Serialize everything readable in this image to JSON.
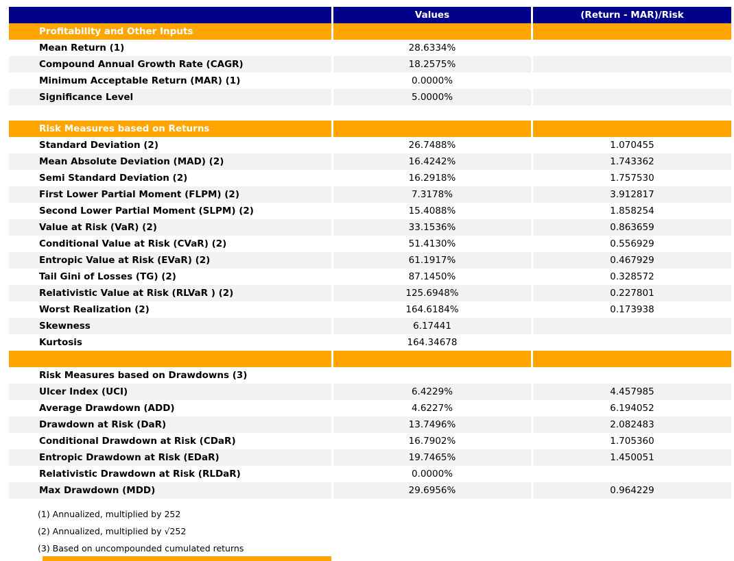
{
  "colors": {
    "header_navy": "#00008B",
    "section_orange": "#FFA500",
    "stripe_gray": "#F2F2F2"
  },
  "report": {
    "header": {
      "label_col": "",
      "values_col": "Values",
      "risk_col": "(Return - MAR)/Risk"
    },
    "sections": [
      {
        "title": "Profitability and Other Inputs",
        "gap_before": false,
        "rows": [
          {
            "label": "Mean Return (1)",
            "value": "28.6334%",
            "risk": ""
          },
          {
            "label": "Compound Annual Growth Rate (CAGR)",
            "value": "18.2575%",
            "risk": ""
          },
          {
            "label": "Minimum Acceptable Return (MAR) (1)",
            "value": "0.0000%",
            "risk": ""
          },
          {
            "label": "Significance Level",
            "value": "5.0000%",
            "risk": ""
          }
        ]
      },
      {
        "title": "Risk Measures based on Returns",
        "gap_before": true,
        "rows": [
          {
            "label": "Standard Deviation (2)",
            "value": "26.7488%",
            "risk": "1.070455"
          },
          {
            "label": "Mean Absolute Deviation (MAD) (2)",
            "value": "16.4242%",
            "risk": "1.743362"
          },
          {
            "label": "Semi Standard Deviation (2)",
            "value": "16.2918%",
            "risk": "1.757530"
          },
          {
            "label": "First Lower Partial Moment (FLPM) (2)",
            "value": "7.3178%",
            "risk": "3.912817"
          },
          {
            "label": "Second Lower Partial Moment (SLPM) (2)",
            "value": "15.4088%",
            "risk": "1.858254"
          },
          {
            "label": "Value at Risk (VaR) (2)",
            "value": "33.1536%",
            "risk": "0.863659"
          },
          {
            "label": "Conditional Value at Risk (CVaR) (2)",
            "value": "51.4130%",
            "risk": "0.556929"
          },
          {
            "label": "Entropic Value at Risk (EVaR) (2)",
            "value": "61.1917%",
            "risk": "0.467929"
          },
          {
            "label": "Tail Gini of Losses (TG) (2)",
            "value": "87.1450%",
            "risk": "0.328572"
          },
          {
            "label": "Relativistic Value at Risk (RLVaR ) (2)",
            "value": "125.6948%",
            "risk": "0.227801"
          },
          {
            "label": "Worst Realization (2)",
            "value": "164.6184%",
            "risk": "0.173938"
          },
          {
            "label": "Skewness",
            "value": "6.17441",
            "risk": ""
          },
          {
            "label": "Kurtosis",
            "value": "164.34678",
            "risk": ""
          }
        ]
      },
      {
        "title": "",
        "gap_before": false,
        "rows": [
          {
            "label": "Risk Measures based on Drawdowns (3)",
            "value": "",
            "risk": ""
          },
          {
            "label": "Ulcer Index (UCI)",
            "value": "6.4229%",
            "risk": "4.457985"
          },
          {
            "label": "Average Drawdown (ADD)",
            "value": "4.6227%",
            "risk": "6.194052"
          },
          {
            "label": "Drawdown at Risk (DaR)",
            "value": "13.7496%",
            "risk": "2.082483"
          },
          {
            "label": "Conditional Drawdown at Risk (CDaR)",
            "value": "16.7902%",
            "risk": "1.705360"
          },
          {
            "label": "Entropic Drawdown at Risk (EDaR)",
            "value": "19.7465%",
            "risk": "1.450051"
          },
          {
            "label": "Relativistic Drawdown at Risk (RLDaR)",
            "value": "0.0000%",
            "risk": ""
          },
          {
            "label": "Max Drawdown (MDD)",
            "value": "29.6956%",
            "risk": "0.964229"
          }
        ]
      }
    ],
    "footnotes": [
      "(1) Annualized, multiplied by 252",
      "(2) Annualized, multiplied by √252",
      "(3) Based on uncompounded cumulated returns"
    ]
  }
}
